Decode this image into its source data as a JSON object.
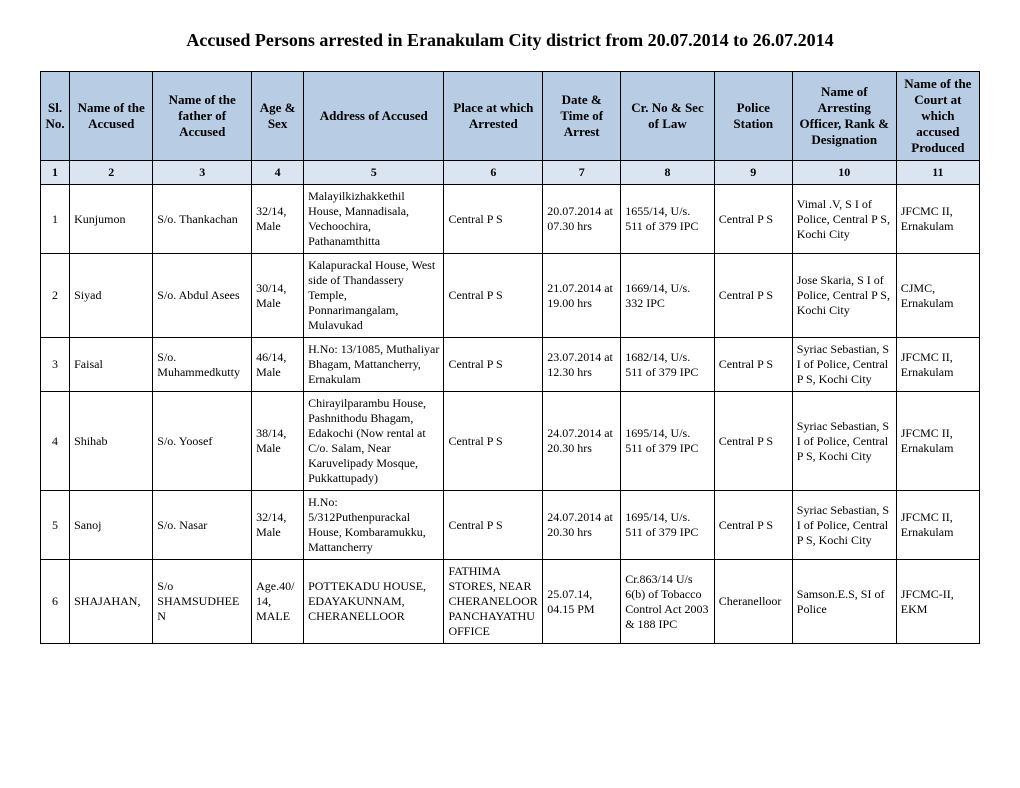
{
  "title": "Accused Persons arrested in Eranakulam City district from  20.07.2014 to 26.07.2014",
  "headers": {
    "c1": "Sl. No.",
    "c2": "Name of the Accused",
    "c3": "Name of the father of Accused",
    "c4": "Age & Sex",
    "c5": "Address of Accused",
    "c6": "Place at which Arrested",
    "c7": "Date & Time of Arrest",
    "c8": "Cr. No & Sec of Law",
    "c9": "Police Station",
    "c10": "Name of Arresting Officer, Rank & Designation",
    "c11": "Name of the Court at which accused Produced"
  },
  "numrow": [
    "1",
    "2",
    "3",
    "4",
    "5",
    "6",
    "7",
    "8",
    "9",
    "10",
    "11"
  ],
  "rows": [
    {
      "sl": "1",
      "name": "Kunjumon",
      "father": "S/o. Thankachan",
      "age": "32/14, Male",
      "address": "Malayilkizhakkethil House, Mannadisala, Vechoochira, Pathanamthitta",
      "place": "Central P S",
      "datetime": "20.07.2014 at 07.30 hrs",
      "crno": "1655/14, U/s. 511 of 379 IPC",
      "station": "Central P S",
      "officer": "Vimal .V,  S I of Police, Central P S, Kochi City",
      "court": "JFCMC II, Ernakulam"
    },
    {
      "sl": "2",
      "name": "Siyad",
      "father": "S/o. Abdul Asees",
      "age": "30/14, Male",
      "address": "Kalapurackal House, West side of Thandassery Temple, Ponnarimangalam, Mulavukad",
      "place": "Central P S",
      "datetime": "21.07.2014 at 19.00 hrs",
      "crno": "1669/14, U/s. 332 IPC",
      "station": "Central P S",
      "officer": "Jose Skaria,  S I of Police, Central P S, Kochi City",
      "court": "CJMC, Ernakulam"
    },
    {
      "sl": "3",
      "name": "Faisal",
      "father": "S/o. Muhammedkutty",
      "age": "46/14, Male",
      "address": "H.No: 13/1085, Muthaliyar Bhagam, Mattancherry, Ernakulam",
      "place": "Central P S",
      "datetime": "23.07.2014 at 12.30 hrs",
      "crno": "1682/14, U/s. 511 of 379 IPC",
      "station": "Central P S",
      "officer": "Syriac Sebastian, S I of Police, Central P S, Kochi City",
      "court": "JFCMC II, Ernakulam"
    },
    {
      "sl": "4",
      "name": "Shihab",
      "father": "S/o. Yoosef",
      "age": "38/14, Male",
      "address": "Chirayilparambu House, Pashnithodu Bhagam, Edakochi (Now rental at C/o. Salam, Near Karuvelipady Mosque, Pukkattupady)",
      "place": "Central P S",
      "datetime": "24.07.2014 at 20.30 hrs",
      "crno": "1695/14, U/s. 511 of 379 IPC",
      "station": "Central P S",
      "officer": "Syriac Sebastian, S I of Police, Central P S, Kochi City",
      "court": "JFCMC II, Ernakulam"
    },
    {
      "sl": "5",
      "name": "Sanoj",
      "father": "S/o. Nasar",
      "age": "32/14, Male",
      "address": "H.No: 5/312Puthenpurackal House, Kombaramukku, Mattancherry",
      "place": "Central P S",
      "datetime": "24.07.2014 at 20.30 hrs",
      "crno": "1695/14, U/s. 511 of 379 IPC",
      "station": "Central P S",
      "officer": "Syriac Sebastian, S I of Police, Central P S, Kochi City",
      "court": "JFCMC II, Ernakulam"
    },
    {
      "sl": "6",
      "name": "SHAJAHAN,",
      "father": "S/o SHAMSUDHEEN",
      "age": "Age.40/14, MALE",
      "address": "POTTEKADU HOUSE, EDAYAKUNNAM, CHERANELLOOR",
      "place": "FATHIMA STORES, NEAR CHERANELOOR PANCHAYATHU OFFICE",
      "datetime": "25.07.14, 04.15 PM",
      "crno": "Cr.863/14 U/s 6(b) of Tobacco Control Act 2003 & 188 IPC",
      "station": "Cheranelloor",
      "officer": "Samson.E.S, SI of Police",
      "court": "JFCMC-II, EKM"
    }
  ]
}
